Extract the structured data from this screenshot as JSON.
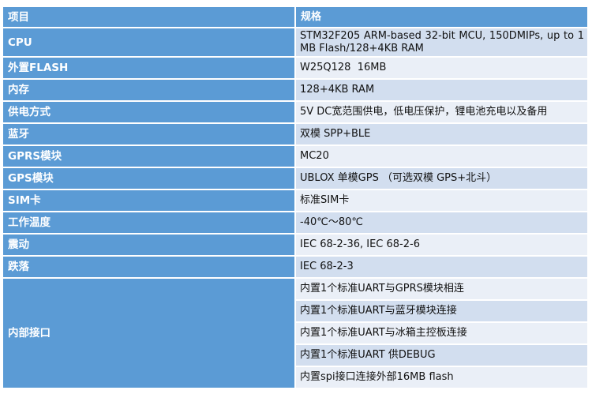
{
  "header": {
    "col1": "项目",
    "col2": "规格"
  },
  "rows": [
    {
      "item": "CPU",
      "spec": "STM32F205 ARM-based 32-bit MCU, 150DMIPs, up to 1 MB Flash/128+4KB RAM"
    },
    {
      "item": "外置FLASH",
      "spec": "W25Q128  16MB"
    },
    {
      "item": "内存",
      "spec": "128+4KB RAM"
    },
    {
      "item": "供电方式",
      "spec": "5V DC宽范围供电，低电压保护，锂电池充电以及备用"
    },
    {
      "item": "蓝牙",
      "spec": "双模 SPP+BLE"
    },
    {
      "item": "GPRS模块",
      "spec": "MC20"
    },
    {
      "item": "GPS模块",
      "spec": "UBLOX 单模GPS （可选双模 GPS+北斗）"
    },
    {
      "item": "SIM卡",
      "spec": "标准SIM卡"
    },
    {
      "item": "工作温度",
      "spec": "-40℃～80℃"
    },
    {
      "item": "震动",
      "spec": "IEC 68-2-36, IEC 68-2-6"
    },
    {
      "item": "跌落",
      "spec": "IEC 68-2-3"
    }
  ],
  "interfaces": {
    "item": "内部接口",
    "specs": [
      "内置1个标准UART与GPRS模块相连",
      "内置1个标准UART与蓝牙模块连接",
      "内置1个标准UART与冰箱主控板连接",
      "内置1个标准UART 供DEBUG",
      "内置spi接口连接外部16MB flash"
    ]
  },
  "colors": {
    "header": "#5B9BD5",
    "row_dark": "#D2DEEF",
    "row_light": "#EAEFF7"
  }
}
